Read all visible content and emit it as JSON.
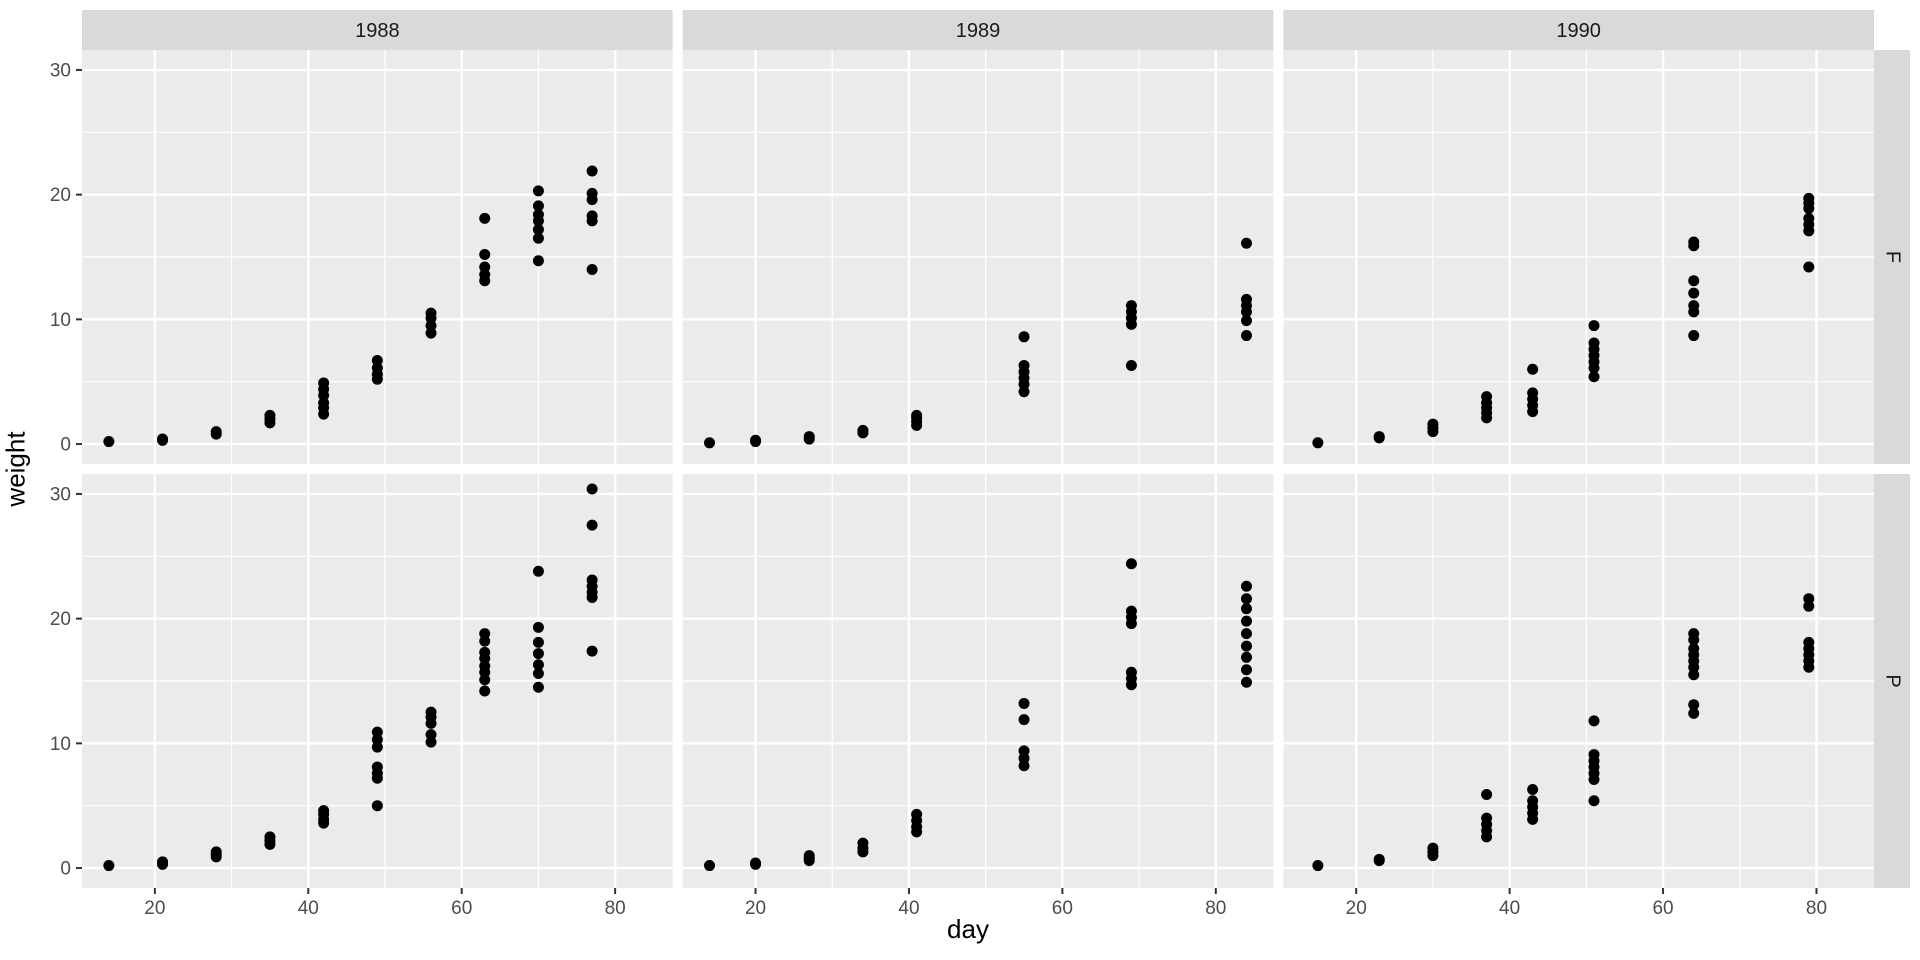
{
  "figure": {
    "background": "#FFFFFF"
  },
  "chart_data": {
    "type": "scatter",
    "title": "",
    "xlabel": "day",
    "ylabel": "weight",
    "facet": {
      "cols": [
        "1988",
        "1989",
        "1990"
      ],
      "rows": [
        "F",
        "P"
      ]
    },
    "xlim": [
      10.5,
      87.5
    ],
    "ylim": [
      -1.6,
      31.6
    ],
    "x_major_ticks": [
      20,
      40,
      60,
      80
    ],
    "x_minor_ticks": [
      10,
      30,
      50,
      70
    ],
    "y_major_ticks": [
      0,
      10,
      20,
      30
    ],
    "y_minor_ticks": [
      5,
      15,
      25
    ],
    "grid": true,
    "legend": "none",
    "point_color": "#000000",
    "panel_bg": "#EBEBEB",
    "strip_bg": "#D9D9D9",
    "major_grid_color": "#FFFFFF",
    "minor_grid_color": "#FFFFFF",
    "tick_color": "#333333",
    "tick_label_color": "#4D4D4D",
    "strip_text_color": "#1A1A1A",
    "panels": [
      {
        "col": "1988",
        "row": "F",
        "points": [
          [
            14,
            0.2
          ],
          [
            21,
            0.3
          ],
          [
            21,
            0.4
          ],
          [
            28,
            0.8
          ],
          [
            28,
            1.0
          ],
          [
            35,
            1.7
          ],
          [
            35,
            2.0
          ],
          [
            35,
            2.3
          ],
          [
            42,
            2.4
          ],
          [
            42,
            2.9
          ],
          [
            42,
            3.3
          ],
          [
            42,
            3.9
          ],
          [
            42,
            4.4
          ],
          [
            42,
            4.9
          ],
          [
            49,
            5.2
          ],
          [
            49,
            5.6
          ],
          [
            49,
            6.1
          ],
          [
            49,
            6.7
          ],
          [
            56,
            8.9
          ],
          [
            56,
            9.5
          ],
          [
            56,
            10.1
          ],
          [
            56,
            10.5
          ],
          [
            63,
            13.1
          ],
          [
            63,
            13.6
          ],
          [
            63,
            14.2
          ],
          [
            63,
            15.2
          ],
          [
            63,
            18.1
          ],
          [
            70,
            14.7
          ],
          [
            70,
            16.5
          ],
          [
            70,
            17.2
          ],
          [
            70,
            17.9
          ],
          [
            70,
            18.4
          ],
          [
            70,
            19.1
          ],
          [
            70,
            20.3
          ],
          [
            77,
            14.0
          ],
          [
            77,
            17.9
          ],
          [
            77,
            18.3
          ],
          [
            77,
            19.6
          ],
          [
            77,
            20.1
          ],
          [
            77,
            21.9
          ]
        ]
      },
      {
        "col": "1989",
        "row": "F",
        "points": [
          [
            14,
            0.1
          ],
          [
            20,
            0.2
          ],
          [
            20,
            0.3
          ],
          [
            27,
            0.4
          ],
          [
            27,
            0.6
          ],
          [
            34,
            0.9
          ],
          [
            34,
            1.1
          ],
          [
            41,
            1.5
          ],
          [
            41,
            1.8
          ],
          [
            41,
            2.1
          ],
          [
            41,
            2.3
          ],
          [
            55,
            4.2
          ],
          [
            55,
            4.8
          ],
          [
            55,
            5.3
          ],
          [
            55,
            5.8
          ],
          [
            55,
            6.3
          ],
          [
            55,
            8.6
          ],
          [
            69,
            6.3
          ],
          [
            69,
            9.6
          ],
          [
            69,
            10.1
          ],
          [
            69,
            10.6
          ],
          [
            69,
            11.1
          ],
          [
            84,
            8.7
          ],
          [
            84,
            9.9
          ],
          [
            84,
            10.6
          ],
          [
            84,
            11.1
          ],
          [
            84,
            11.6
          ],
          [
            84,
            16.1
          ]
        ]
      },
      {
        "col": "1990",
        "row": "F",
        "points": [
          [
            15,
            0.1
          ],
          [
            23,
            0.5
          ],
          [
            23,
            0.6
          ],
          [
            30,
            1.0
          ],
          [
            30,
            1.3
          ],
          [
            30,
            1.6
          ],
          [
            37,
            2.1
          ],
          [
            37,
            2.5
          ],
          [
            37,
            2.9
          ],
          [
            37,
            3.3
          ],
          [
            37,
            3.8
          ],
          [
            43,
            2.6
          ],
          [
            43,
            3.1
          ],
          [
            43,
            3.6
          ],
          [
            43,
            4.1
          ],
          [
            43,
            6.0
          ],
          [
            51,
            5.4
          ],
          [
            51,
            6.1
          ],
          [
            51,
            6.6
          ],
          [
            51,
            7.1
          ],
          [
            51,
            7.6
          ],
          [
            51,
            8.1
          ],
          [
            51,
            9.5
          ],
          [
            64,
            8.7
          ],
          [
            64,
            10.6
          ],
          [
            64,
            11.1
          ],
          [
            64,
            12.1
          ],
          [
            64,
            13.1
          ],
          [
            64,
            15.9
          ],
          [
            64,
            16.2
          ],
          [
            79,
            14.2
          ],
          [
            79,
            17.1
          ],
          [
            79,
            17.6
          ],
          [
            79,
            18.1
          ],
          [
            79,
            18.9
          ],
          [
            79,
            19.3
          ],
          [
            79,
            19.7
          ]
        ]
      },
      {
        "col": "1988",
        "row": "P",
        "points": [
          [
            14,
            0.2
          ],
          [
            21,
            0.3
          ],
          [
            21,
            0.5
          ],
          [
            28,
            0.9
          ],
          [
            28,
            1.1
          ],
          [
            28,
            1.3
          ],
          [
            35,
            1.9
          ],
          [
            35,
            2.2
          ],
          [
            35,
            2.5
          ],
          [
            42,
            3.6
          ],
          [
            42,
            3.9
          ],
          [
            42,
            4.3
          ],
          [
            42,
            4.6
          ],
          [
            49,
            5.0
          ],
          [
            49,
            7.2
          ],
          [
            49,
            7.6
          ],
          [
            49,
            8.1
          ],
          [
            49,
            9.7
          ],
          [
            49,
            10.3
          ],
          [
            49,
            10.9
          ],
          [
            56,
            10.1
          ],
          [
            56,
            10.7
          ],
          [
            56,
            11.6
          ],
          [
            56,
            12.1
          ],
          [
            56,
            12.5
          ],
          [
            63,
            14.2
          ],
          [
            63,
            15.1
          ],
          [
            63,
            15.7
          ],
          [
            63,
            16.2
          ],
          [
            63,
            16.8
          ],
          [
            63,
            17.3
          ],
          [
            63,
            18.2
          ],
          [
            63,
            18.8
          ],
          [
            70,
            14.5
          ],
          [
            70,
            15.6
          ],
          [
            70,
            16.3
          ],
          [
            70,
            17.2
          ],
          [
            70,
            18.1
          ],
          [
            70,
            19.3
          ],
          [
            70,
            23.8
          ],
          [
            77,
            17.4
          ],
          [
            77,
            21.7
          ],
          [
            77,
            22.1
          ],
          [
            77,
            22.6
          ],
          [
            77,
            23.1
          ],
          [
            77,
            27.5
          ],
          [
            77,
            30.4
          ]
        ]
      },
      {
        "col": "1989",
        "row": "P",
        "points": [
          [
            14,
            0.2
          ],
          [
            20,
            0.3
          ],
          [
            20,
            0.4
          ],
          [
            27,
            0.6
          ],
          [
            27,
            0.8
          ],
          [
            27,
            1.0
          ],
          [
            34,
            1.3
          ],
          [
            34,
            1.6
          ],
          [
            34,
            2.0
          ],
          [
            41,
            2.9
          ],
          [
            41,
            3.3
          ],
          [
            41,
            3.8
          ],
          [
            41,
            4.3
          ],
          [
            55,
            8.2
          ],
          [
            55,
            8.8
          ],
          [
            55,
            9.4
          ],
          [
            55,
            11.9
          ],
          [
            55,
            13.2
          ],
          [
            69,
            14.7
          ],
          [
            69,
            15.2
          ],
          [
            69,
            15.7
          ],
          [
            69,
            19.6
          ],
          [
            69,
            20.1
          ],
          [
            69,
            20.6
          ],
          [
            69,
            24.4
          ],
          [
            84,
            14.9
          ],
          [
            84,
            15.9
          ],
          [
            84,
            16.9
          ],
          [
            84,
            17.8
          ],
          [
            84,
            18.8
          ],
          [
            84,
            19.8
          ],
          [
            84,
            20.8
          ],
          [
            84,
            21.6
          ],
          [
            84,
            22.6
          ]
        ]
      },
      {
        "col": "1990",
        "row": "P",
        "points": [
          [
            15,
            0.2
          ],
          [
            23,
            0.6
          ],
          [
            23,
            0.7
          ],
          [
            30,
            1.0
          ],
          [
            30,
            1.3
          ],
          [
            30,
            1.6
          ],
          [
            37,
            2.5
          ],
          [
            37,
            3.0
          ],
          [
            37,
            3.5
          ],
          [
            37,
            4.0
          ],
          [
            37,
            5.9
          ],
          [
            43,
            3.9
          ],
          [
            43,
            4.4
          ],
          [
            43,
            4.9
          ],
          [
            43,
            5.4
          ],
          [
            43,
            6.3
          ],
          [
            51,
            5.4
          ],
          [
            51,
            7.1
          ],
          [
            51,
            7.6
          ],
          [
            51,
            8.1
          ],
          [
            51,
            8.6
          ],
          [
            51,
            9.1
          ],
          [
            51,
            11.8
          ],
          [
            64,
            12.4
          ],
          [
            64,
            13.1
          ],
          [
            64,
            15.5
          ],
          [
            64,
            16.1
          ],
          [
            64,
            16.6
          ],
          [
            64,
            17.1
          ],
          [
            64,
            17.6
          ],
          [
            64,
            18.3
          ],
          [
            64,
            18.8
          ],
          [
            79,
            16.1
          ],
          [
            79,
            16.6
          ],
          [
            79,
            17.1
          ],
          [
            79,
            17.6
          ],
          [
            79,
            18.1
          ],
          [
            79,
            21.0
          ],
          [
            79,
            21.6
          ]
        ]
      }
    ]
  }
}
